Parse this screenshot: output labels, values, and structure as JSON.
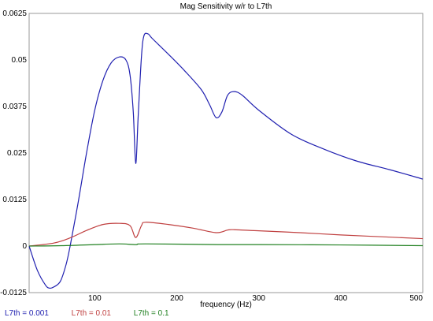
{
  "chart_data": {
    "type": "line",
    "title": "Mag Sensitivity w/r to L7th",
    "xlabel": "frequency (Hz)",
    "ylabel": "",
    "xlim": [
      20,
      500
    ],
    "ylim": [
      -0.0125,
      0.0625
    ],
    "xticks": [
      100,
      200,
      300,
      400,
      500
    ],
    "xtick_labels": [
      "100",
      "200",
      "300",
      "400",
      "500"
    ],
    "yticks": [
      -0.0125,
      0,
      0.0125,
      0.025,
      0.0375,
      0.05,
      0.0625
    ],
    "ytick_labels": [
      "-0.0125",
      "0",
      "0.0125",
      "0.025",
      "0.0375",
      "0.05",
      "0.0625"
    ],
    "grid": false,
    "legend_position": "bottom-left",
    "series": [
      {
        "name": "L7th = 0.001",
        "color": "#2020b0",
        "points": [
          [
            20,
            0
          ],
          [
            30,
            -0.0065
          ],
          [
            40,
            -0.0105
          ],
          [
            45,
            -0.0113
          ],
          [
            50,
            -0.011
          ],
          [
            58,
            -0.0095
          ],
          [
            65,
            -0.005
          ],
          [
            70,
            0.0
          ],
          [
            80,
            0.012
          ],
          [
            90,
            0.025
          ],
          [
            100,
            0.0365
          ],
          [
            110,
            0.0445
          ],
          [
            120,
            0.0492
          ],
          [
            130,
            0.0508
          ],
          [
            138,
            0.05
          ],
          [
            143,
            0.046
          ],
          [
            147,
            0.036
          ],
          [
            150,
            0.0222
          ],
          [
            153,
            0.035
          ],
          [
            157,
            0.051
          ],
          [
            160,
            0.0565
          ],
          [
            165,
            0.057
          ],
          [
            170,
            0.0558
          ],
          [
            190,
            0.0515
          ],
          [
            210,
            0.047
          ],
          [
            230,
            0.042
          ],
          [
            240,
            0.038
          ],
          [
            248,
            0.0345
          ],
          [
            255,
            0.036
          ],
          [
            262,
            0.0405
          ],
          [
            270,
            0.0415
          ],
          [
            280,
            0.0405
          ],
          [
            300,
            0.0365
          ],
          [
            340,
            0.03
          ],
          [
            380,
            0.026
          ],
          [
            420,
            0.0228
          ],
          [
            460,
            0.0205
          ],
          [
            500,
            0.018
          ]
        ]
      },
      {
        "name": "L7th = 0.01",
        "color": "#c04040",
        "points": [
          [
            20,
            0
          ],
          [
            50,
            0.0008
          ],
          [
            70,
            0.0022
          ],
          [
            90,
            0.0042
          ],
          [
            110,
            0.0058
          ],
          [
            130,
            0.0061
          ],
          [
            143,
            0.0055
          ],
          [
            150,
            0.0023
          ],
          [
            157,
            0.0055
          ],
          [
            162,
            0.0064
          ],
          [
            190,
            0.0058
          ],
          [
            220,
            0.0048
          ],
          [
            248,
            0.0036
          ],
          [
            262,
            0.0043
          ],
          [
            270,
            0.0044
          ],
          [
            300,
            0.0041
          ],
          [
            350,
            0.0036
          ],
          [
            400,
            0.003
          ],
          [
            450,
            0.0025
          ],
          [
            500,
            0.002
          ]
        ]
      },
      {
        "name": "L7th = 0.1",
        "color": "#208020",
        "points": [
          [
            20,
            0
          ],
          [
            60,
            0.0001
          ],
          [
            100,
            0.0004
          ],
          [
            130,
            0.0006
          ],
          [
            150,
            0.0004
          ],
          [
            162,
            0.0006
          ],
          [
            250,
            0.0004
          ],
          [
            300,
            0.0004
          ],
          [
            400,
            0.0003
          ],
          [
            500,
            0.0001
          ]
        ]
      }
    ]
  },
  "legend": {
    "items": [
      {
        "label": "L7th = 0.001",
        "color": "#2020b0"
      },
      {
        "label": "L7th = 0.01",
        "color": "#c04040"
      },
      {
        "label": "L7th = 0.1",
        "color": "#208020"
      }
    ]
  }
}
